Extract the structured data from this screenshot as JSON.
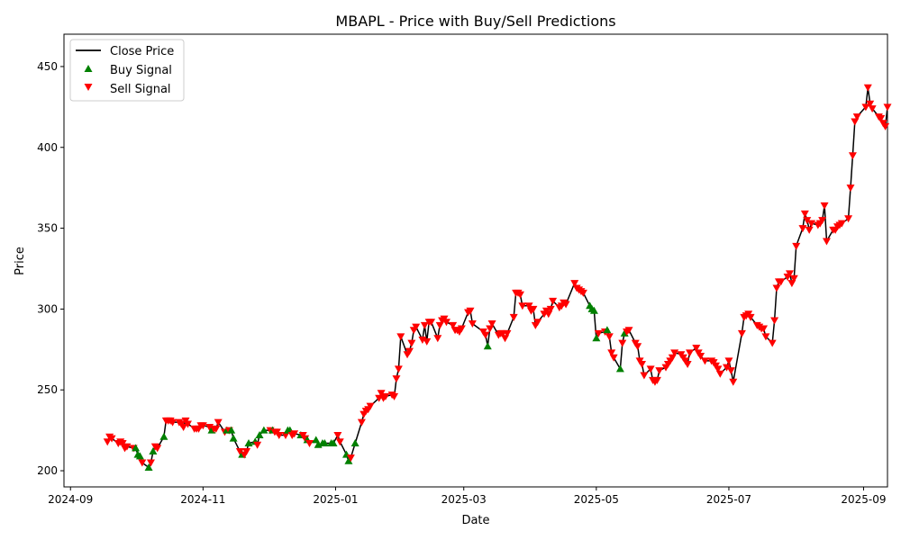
{
  "chart_data": {
    "type": "line",
    "title": "MBAPL - Price with Buy/Sell Predictions",
    "xlabel": "Date",
    "ylabel": "Price",
    "xlim": [
      "2024-08-29",
      "2025-09-12"
    ],
    "ylim": [
      190,
      470
    ],
    "x_ticks": [
      "2024-09-01",
      "2024-11-01",
      "2025-01-01",
      "2025-03-01",
      "2025-05-01",
      "2025-07-01",
      "2025-09-01"
    ],
    "x_tick_labels": [
      "2024-09",
      "2024-11",
      "2025-01",
      "2025-03",
      "2025-05",
      "2025-07",
      "2025-09"
    ],
    "y_ticks": [
      200,
      250,
      300,
      350,
      400,
      450
    ],
    "grid": false,
    "legend": {
      "position": "upper-left",
      "entries": [
        {
          "label": "Close Price",
          "marker": "line",
          "color": "#000000"
        },
        {
          "label": "Buy Signal",
          "marker": "triangle-up",
          "color": "#008000"
        },
        {
          "label": "Sell Signal",
          "marker": "triangle-down",
          "color": "#ff0000"
        }
      ]
    },
    "series": [
      {
        "name": "Close Price",
        "color": "#000000",
        "points": [
          [
            "2024-09-18",
            218
          ],
          [
            "2024-09-19",
            221
          ],
          [
            "2024-09-20",
            220
          ],
          [
            "2024-09-23",
            217
          ],
          [
            "2024-09-24",
            218
          ],
          [
            "2024-09-25",
            217
          ],
          [
            "2024-09-26",
            214
          ],
          [
            "2024-09-27",
            215
          ],
          [
            "2024-09-30",
            214
          ],
          [
            "2024-10-01",
            214
          ],
          [
            "2024-10-02",
            210
          ],
          [
            "2024-10-03",
            209
          ],
          [
            "2024-10-04",
            205
          ],
          [
            "2024-10-07",
            202
          ],
          [
            "2024-10-08",
            205
          ],
          [
            "2024-10-09",
            212
          ],
          [
            "2024-10-10",
            215
          ],
          [
            "2024-10-11",
            214
          ],
          [
            "2024-10-14",
            221
          ],
          [
            "2024-10-15",
            231
          ],
          [
            "2024-10-16",
            231
          ],
          [
            "2024-10-17",
            231
          ],
          [
            "2024-10-18",
            230
          ],
          [
            "2024-10-21",
            230
          ],
          [
            "2024-10-22",
            229
          ],
          [
            "2024-10-23",
            227
          ],
          [
            "2024-10-24",
            231
          ],
          [
            "2024-10-25",
            229
          ],
          [
            "2024-10-28",
            226
          ],
          [
            "2024-10-29",
            226
          ],
          [
            "2024-10-30",
            226
          ],
          [
            "2024-10-31",
            228
          ],
          [
            "2024-11-01",
            228
          ],
          [
            "2024-11-04",
            227
          ],
          [
            "2024-11-05",
            225
          ],
          [
            "2024-11-06",
            226
          ],
          [
            "2024-11-07",
            226
          ],
          [
            "2024-11-08",
            230
          ],
          [
            "2024-11-11",
            224
          ],
          [
            "2024-11-12",
            225
          ],
          [
            "2024-11-13",
            225
          ],
          [
            "2024-11-14",
            225
          ],
          [
            "2024-11-15",
            220
          ],
          [
            "2024-11-18",
            212
          ],
          [
            "2024-11-19",
            210
          ],
          [
            "2024-11-20",
            210
          ],
          [
            "2024-11-21",
            212
          ],
          [
            "2024-11-22",
            217
          ],
          [
            "2024-11-25",
            218
          ],
          [
            "2024-11-26",
            216
          ],
          [
            "2024-11-27",
            222
          ],
          [
            "2024-11-29",
            225
          ],
          [
            "2024-12-02",
            225
          ],
          [
            "2024-12-03",
            225
          ],
          [
            "2024-12-04",
            224
          ],
          [
            "2024-12-05",
            224
          ],
          [
            "2024-12-06",
            222
          ],
          [
            "2024-12-09",
            222
          ],
          [
            "2024-12-10",
            225
          ],
          [
            "2024-12-11",
            225
          ],
          [
            "2024-12-12",
            222
          ],
          [
            "2024-12-13",
            223
          ],
          [
            "2024-12-16",
            222
          ],
          [
            "2024-12-17",
            222
          ],
          [
            "2024-12-18",
            220
          ],
          [
            "2024-12-19",
            219
          ],
          [
            "2024-12-20",
            217
          ],
          [
            "2024-12-23",
            219
          ],
          [
            "2024-12-24",
            216
          ],
          [
            "2024-12-26",
            217
          ],
          [
            "2024-12-27",
            217
          ],
          [
            "2024-12-30",
            217
          ],
          [
            "2024-12-31",
            217
          ],
          [
            "2025-01-02",
            222
          ],
          [
            "2025-01-03",
            218
          ],
          [
            "2025-01-06",
            210
          ],
          [
            "2025-01-07",
            206
          ],
          [
            "2025-01-08",
            208
          ],
          [
            "2025-01-10",
            217
          ],
          [
            "2025-01-13",
            230
          ],
          [
            "2025-01-14",
            235
          ],
          [
            "2025-01-15",
            237
          ],
          [
            "2025-01-16",
            238
          ],
          [
            "2025-01-17",
            240
          ],
          [
            "2025-01-21",
            245
          ],
          [
            "2025-01-22",
            248
          ],
          [
            "2025-01-23",
            245
          ],
          [
            "2025-01-24",
            246
          ],
          [
            "2025-01-27",
            247
          ],
          [
            "2025-01-28",
            246
          ],
          [
            "2025-01-29",
            257
          ],
          [
            "2025-01-30",
            263
          ],
          [
            "2025-01-31",
            283
          ],
          [
            "2025-02-03",
            272
          ],
          [
            "2025-02-04",
            274
          ],
          [
            "2025-02-05",
            279
          ],
          [
            "2025-02-06",
            287
          ],
          [
            "2025-02-07",
            289
          ],
          [
            "2025-02-10",
            281
          ],
          [
            "2025-02-11",
            290
          ],
          [
            "2025-02-12",
            280
          ],
          [
            "2025-02-13",
            292
          ],
          [
            "2025-02-14",
            292
          ],
          [
            "2025-02-17",
            282
          ],
          [
            "2025-02-18",
            290
          ],
          [
            "2025-02-19",
            293
          ],
          [
            "2025-02-20",
            294
          ],
          [
            "2025-02-21",
            292
          ],
          [
            "2025-02-24",
            290
          ],
          [
            "2025-02-25",
            287
          ],
          [
            "2025-02-26",
            287
          ],
          [
            "2025-02-27",
            286
          ],
          [
            "2025-02-28",
            288
          ],
          [
            "2025-03-03",
            298
          ],
          [
            "2025-03-04",
            299
          ],
          [
            "2025-03-05",
            291
          ],
          [
            "2025-03-10",
            286
          ],
          [
            "2025-03-11",
            284
          ],
          [
            "2025-03-12",
            277
          ],
          [
            "2025-03-13",
            288
          ],
          [
            "2025-03-14",
            291
          ],
          [
            "2025-03-17",
            284
          ],
          [
            "2025-03-18",
            285
          ],
          [
            "2025-03-19",
            285
          ],
          [
            "2025-03-20",
            282
          ],
          [
            "2025-03-21",
            285
          ],
          [
            "2025-03-24",
            295
          ],
          [
            "2025-03-25",
            310
          ],
          [
            "2025-03-26",
            310
          ],
          [
            "2025-03-27",
            309
          ],
          [
            "2025-03-28",
            302
          ],
          [
            "2025-03-31",
            302
          ],
          [
            "2025-04-01",
            299
          ],
          [
            "2025-04-02",
            300
          ],
          [
            "2025-04-03",
            290
          ],
          [
            "2025-04-04",
            292
          ],
          [
            "2025-04-07",
            297
          ],
          [
            "2025-04-08",
            299
          ],
          [
            "2025-04-09",
            297
          ],
          [
            "2025-04-10",
            300
          ],
          [
            "2025-04-11",
            305
          ],
          [
            "2025-04-14",
            301
          ],
          [
            "2025-04-15",
            302
          ],
          [
            "2025-04-16",
            304
          ],
          [
            "2025-04-17",
            303
          ],
          [
            "2025-04-21",
            316
          ],
          [
            "2025-04-22",
            313
          ],
          [
            "2025-04-23",
            312
          ],
          [
            "2025-04-24",
            311
          ],
          [
            "2025-04-25",
            310
          ],
          [
            "2025-04-28",
            302
          ],
          [
            "2025-04-29",
            300
          ],
          [
            "2025-04-30",
            299
          ],
          [
            "2025-05-01",
            282
          ],
          [
            "2025-05-02",
            285
          ],
          [
            "2025-05-05",
            286
          ],
          [
            "2025-05-06",
            287
          ],
          [
            "2025-05-07",
            283
          ],
          [
            "2025-05-08",
            273
          ],
          [
            "2025-05-09",
            270
          ],
          [
            "2025-05-12",
            263
          ],
          [
            "2025-05-13",
            279
          ],
          [
            "2025-05-14",
            285
          ],
          [
            "2025-05-15",
            286
          ],
          [
            "2025-05-16",
            287
          ],
          [
            "2025-05-19",
            279
          ],
          [
            "2025-05-20",
            277
          ],
          [
            "2025-05-21",
            268
          ],
          [
            "2025-05-22",
            266
          ],
          [
            "2025-05-23",
            259
          ],
          [
            "2025-05-26",
            263
          ],
          [
            "2025-05-27",
            256
          ],
          [
            "2025-05-28",
            255
          ],
          [
            "2025-05-29",
            256
          ],
          [
            "2025-05-30",
            262
          ],
          [
            "2025-06-02",
            264
          ],
          [
            "2025-06-03",
            266
          ],
          [
            "2025-06-04",
            268
          ],
          [
            "2025-06-05",
            270
          ],
          [
            "2025-06-06",
            273
          ],
          [
            "2025-06-09",
            272
          ],
          [
            "2025-06-10",
            270
          ],
          [
            "2025-06-11",
            268
          ],
          [
            "2025-06-12",
            266
          ],
          [
            "2025-06-13",
            273
          ],
          [
            "2025-06-16",
            276
          ],
          [
            "2025-06-17",
            273
          ],
          [
            "2025-06-18",
            271
          ],
          [
            "2025-06-20",
            268
          ],
          [
            "2025-06-23",
            268
          ],
          [
            "2025-06-24",
            267
          ],
          [
            "2025-06-25",
            265
          ],
          [
            "2025-06-26",
            263
          ],
          [
            "2025-06-27",
            260
          ],
          [
            "2025-06-30",
            264
          ],
          [
            "2025-07-01",
            268
          ],
          [
            "2025-07-02",
            262
          ],
          [
            "2025-07-03",
            255
          ],
          [
            "2025-07-07",
            285
          ],
          [
            "2025-07-08",
            295
          ],
          [
            "2025-07-09",
            296
          ],
          [
            "2025-07-10",
            297
          ],
          [
            "2025-07-11",
            295
          ],
          [
            "2025-07-14",
            290
          ],
          [
            "2025-07-15",
            289
          ],
          [
            "2025-07-16",
            288
          ],
          [
            "2025-07-17",
            288
          ],
          [
            "2025-07-18",
            283
          ],
          [
            "2025-07-21",
            279
          ],
          [
            "2025-07-22",
            293
          ],
          [
            "2025-07-23",
            313
          ],
          [
            "2025-07-24",
            317
          ],
          [
            "2025-07-25",
            317
          ],
          [
            "2025-07-28",
            320
          ],
          [
            "2025-07-29",
            322
          ],
          [
            "2025-07-30",
            316
          ],
          [
            "2025-07-31",
            319
          ],
          [
            "2025-08-01",
            339
          ],
          [
            "2025-08-04",
            350
          ],
          [
            "2025-08-05",
            359
          ],
          [
            "2025-08-06",
            355
          ],
          [
            "2025-08-07",
            349
          ],
          [
            "2025-08-08",
            353
          ],
          [
            "2025-08-11",
            352
          ],
          [
            "2025-08-12",
            353
          ],
          [
            "2025-08-13",
            355
          ],
          [
            "2025-08-14",
            364
          ],
          [
            "2025-08-15",
            342
          ],
          [
            "2025-08-18",
            349
          ],
          [
            "2025-08-19",
            349
          ],
          [
            "2025-08-20",
            351
          ],
          [
            "2025-08-21",
            352
          ],
          [
            "2025-08-22",
            353
          ],
          [
            "2025-08-25",
            356
          ],
          [
            "2025-08-26",
            375
          ],
          [
            "2025-08-27",
            395
          ],
          [
            "2025-08-28",
            416
          ],
          [
            "2025-08-29",
            419
          ],
          [
            "2025-09-02",
            425
          ],
          [
            "2025-09-03",
            437
          ],
          [
            "2025-09-04",
            427
          ],
          [
            "2025-09-05",
            424
          ],
          [
            "2025-09-08",
            419
          ],
          [
            "2025-09-09",
            418
          ],
          [
            "2025-09-10",
            415
          ],
          [
            "2025-09-11",
            413
          ],
          [
            "2025-09-12",
            425
          ]
        ]
      }
    ]
  },
  "x_axis_override_note_hidden": ""
}
